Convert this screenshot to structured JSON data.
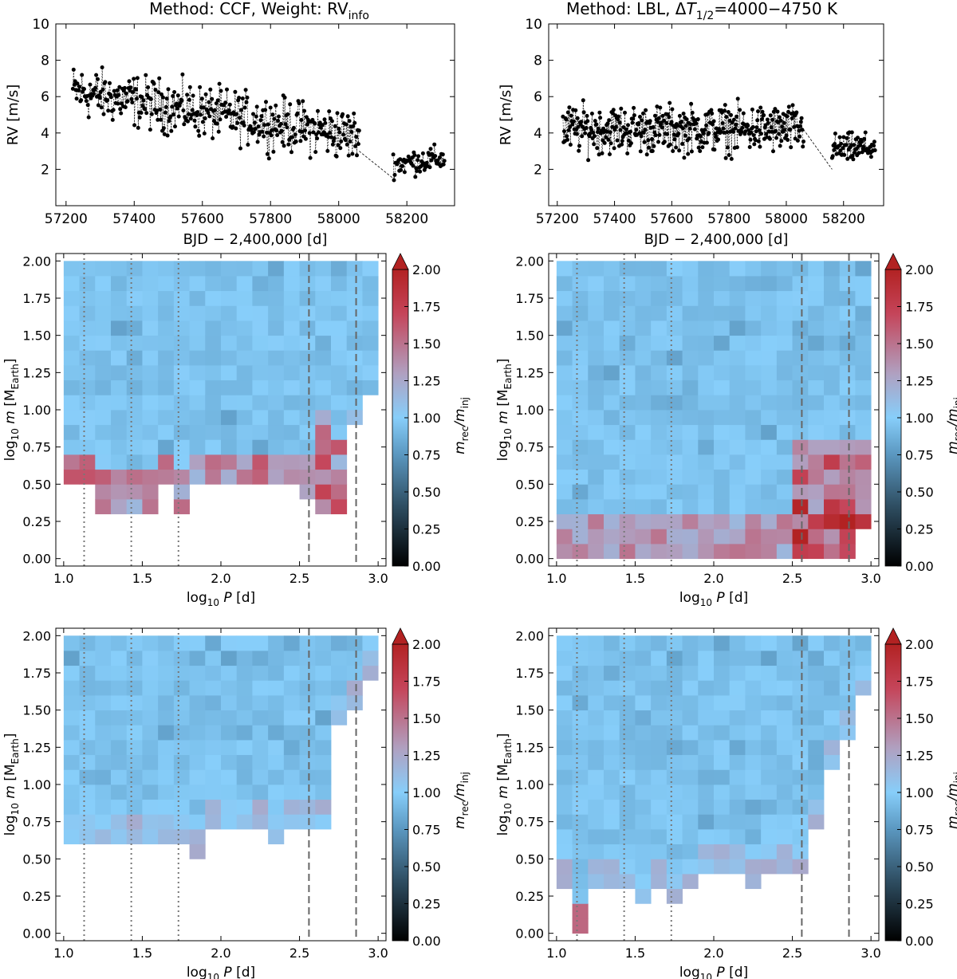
{
  "titles": {
    "left_prefix": "Method: CCF, Weight: RV",
    "left_sub": "info",
    "right_a": "Method: LBL, Δ",
    "right_T": "T",
    "right_sub": "1/2",
    "right_b": "=4000−4750 K"
  },
  "rv_axes": {
    "ylabel": "RV [m/s]",
    "xlabel": "BJD − 2,400,000 [d]",
    "xticks": [
      57200,
      57400,
      57600,
      57800,
      58000,
      58200
    ],
    "yticks": [
      2,
      4,
      6,
      8,
      10
    ],
    "xlim": [
      57170,
      58340
    ],
    "ylim": [
      0,
      10
    ]
  },
  "grid_axes": {
    "ylabel_main": "log",
    "ylabel_sub10": "10",
    "ylabel_var": " m ",
    "ylabel_unit_open": "[M",
    "ylabel_unit_sub": "Earth",
    "ylabel_unit_close": "]",
    "xlabel_main": "log",
    "xlabel_sub10": "10",
    "xlabel_var": " P ",
    "xlabel_unit": "[d]",
    "xticks": [
      "1.0",
      "1.5",
      "2.0",
      "2.5",
      "3.0"
    ],
    "yticks": [
      "0.00",
      "0.25",
      "0.50",
      "0.75",
      "1.00",
      "1.25",
      "1.50",
      "1.75",
      "2.00"
    ],
    "xlim": [
      0.95,
      3.05
    ],
    "ylim": [
      -0.05,
      2.05
    ],
    "dotted_lines_x": [
      1.13,
      1.43,
      1.73
    ],
    "dashed_lines_x": [
      2.56,
      2.86
    ]
  },
  "colorbar": {
    "label_main": "m",
    "label_sub_rec": "rec",
    "label_slash": "/m",
    "label_sub_inj": "inj",
    "ticks": [
      "0.00",
      "0.25",
      "0.50",
      "0.75",
      "1.00",
      "1.25",
      "1.50",
      "1.75",
      "2.00"
    ],
    "range": [
      0,
      2
    ],
    "colors": [
      "#000000",
      "#2e4d61",
      "#5c99c2",
      "#87cefa",
      "#b0a0c0",
      "#c5455a",
      "#b22222"
    ]
  },
  "chart_data": [
    {
      "type": "line",
      "panel": "rv-ccf",
      "title": "Method: CCF, Weight: RVinfo",
      "xlabel": "BJD − 2,400,000 [d]",
      "ylabel": "RV [m/s]",
      "xlim": [
        57170,
        58340
      ],
      "ylim": [
        0,
        10
      ],
      "segments": [
        {
          "x": [
            57220,
            58060
          ],
          "trend": [
            6.3,
            3.8
          ],
          "spread": 1.4
        },
        {
          "x": [
            58160,
            58310
          ],
          "trend": [
            2.3,
            2.6
          ],
          "spread": 0.7
        }
      ],
      "gap_line": {
        "x": [
          58060,
          58160
        ],
        "y": [
          3.0,
          1.5
        ]
      }
    },
    {
      "type": "line",
      "panel": "rv-lbl",
      "title": "Method: LBL, ΔT1/2=4000−4750 K",
      "xlabel": "BJD − 2,400,000 [d]",
      "ylabel": "RV [m/s]",
      "xlim": [
        57170,
        58340
      ],
      "ylim": [
        0,
        10
      ],
      "segments": [
        {
          "x": [
            57220,
            58060
          ],
          "trend": [
            4.2,
            4.2
          ],
          "spread": 1.3
        },
        {
          "x": [
            58160,
            58310
          ],
          "trend": [
            3.1,
            3.2
          ],
          "spread": 0.8
        }
      ],
      "gap_line": {
        "x": [
          58060,
          58160
        ],
        "y": [
          4.2,
          2.0
        ]
      }
    },
    {
      "type": "heatmap",
      "panel": "grid-ccf-all",
      "x_bins": 20,
      "y_bins": 20,
      "xrange": [
        1.0,
        3.0
      ],
      "yrange": [
        0.0,
        2.0
      ],
      "value_label": "m_rec/m_inj",
      "boundary": [
        0.45,
        0.45,
        0.25,
        0.25,
        0.25,
        0.25,
        0.45,
        0.25,
        0.45,
        0.45,
        0.45,
        0.45,
        0.45,
        0.45,
        0.45,
        0.35,
        0.25,
        0.25,
        0.85,
        1.05
      ]
    },
    {
      "type": "heatmap",
      "panel": "grid-lbl-all",
      "x_bins": 20,
      "y_bins": 20,
      "xrange": [
        1.0,
        3.0
      ],
      "yrange": [
        0.0,
        2.0
      ],
      "value_label": "m_rec/m_inj",
      "boundary": [
        -0.05,
        -0.05,
        -0.05,
        -0.05,
        -0.05,
        -0.05,
        -0.05,
        -0.05,
        -0.05,
        -0.05,
        -0.05,
        -0.05,
        -0.05,
        -0.05,
        -0.05,
        -0.05,
        -0.05,
        -0.05,
        -0.05,
        0.15
      ]
    },
    {
      "type": "heatmap",
      "panel": "grid-ccf-sub",
      "x_bins": 20,
      "y_bins": 20,
      "xrange": [
        1.0,
        3.0
      ],
      "yrange": [
        0.0,
        2.0
      ],
      "value_label": "m_rec/m_inj",
      "boundary": [
        0.55,
        0.55,
        0.55,
        0.55,
        0.55,
        0.55,
        0.55,
        0.55,
        0.45,
        0.65,
        0.65,
        0.65,
        0.65,
        0.55,
        0.65,
        0.65,
        0.65,
        1.35,
        1.45,
        1.65
      ]
    },
    {
      "type": "heatmap",
      "panel": "grid-lbl-sub",
      "x_bins": 20,
      "y_bins": 20,
      "xrange": [
        1.0,
        3.0
      ],
      "yrange": [
        0.0,
        2.0
      ],
      "value_label": "m_rec/m_inj",
      "boundary": [
        0.25,
        -0.05,
        0.25,
        0.25,
        0.25,
        0.15,
        0.25,
        0.15,
        0.25,
        0.35,
        0.35,
        0.35,
        0.25,
        0.35,
        0.35,
        0.35,
        0.65,
        1.05,
        1.25,
        1.55
      ]
    }
  ]
}
